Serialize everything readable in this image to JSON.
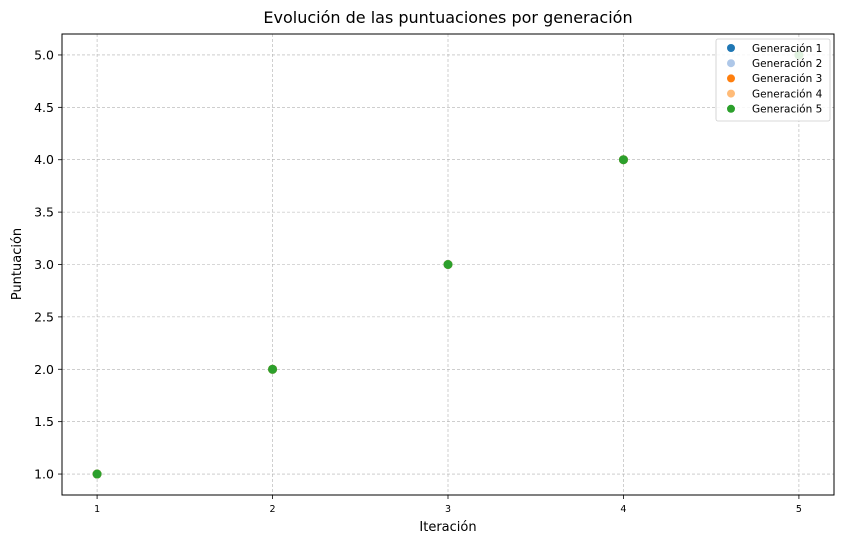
{
  "chart_data": {
    "type": "scatter",
    "title": "Evolución de las puntuaciones por generación",
    "xlabel": "Iteración",
    "ylabel": "Puntuación",
    "xlim": [
      0.8,
      5.2
    ],
    "ylim": [
      0.8,
      5.2
    ],
    "x_ticks": [
      1,
      2,
      3,
      4,
      5
    ],
    "y_ticks": [
      1.0,
      1.5,
      2.0,
      2.5,
      3.0,
      3.5,
      4.0,
      4.5,
      5.0
    ],
    "grid": true,
    "legend_position": "top-right",
    "series": [
      {
        "name": "Generación 1",
        "color": "#1f77b4",
        "x": [
          1,
          2,
          3,
          4,
          5
        ],
        "y": [
          1,
          2,
          3,
          4,
          5
        ]
      },
      {
        "name": "Generación 2",
        "color": "#aec7e8",
        "x": [
          1,
          2,
          3,
          4,
          5
        ],
        "y": [
          1,
          2,
          3,
          4,
          5
        ]
      },
      {
        "name": "Generación 3",
        "color": "#ff7f0e",
        "x": [
          1,
          2,
          3,
          4,
          5
        ],
        "y": [
          1,
          2,
          3,
          4,
          5
        ]
      },
      {
        "name": "Generación 4",
        "color": "#ffbb78",
        "x": [
          1,
          2,
          3,
          4,
          5
        ],
        "y": [
          1,
          2,
          3,
          4,
          5
        ]
      },
      {
        "name": "Generación 5",
        "color": "#2ca02c",
        "x": [
          1,
          2,
          3,
          4,
          5
        ],
        "y": [
          1,
          2,
          3,
          4,
          5
        ]
      }
    ]
  }
}
